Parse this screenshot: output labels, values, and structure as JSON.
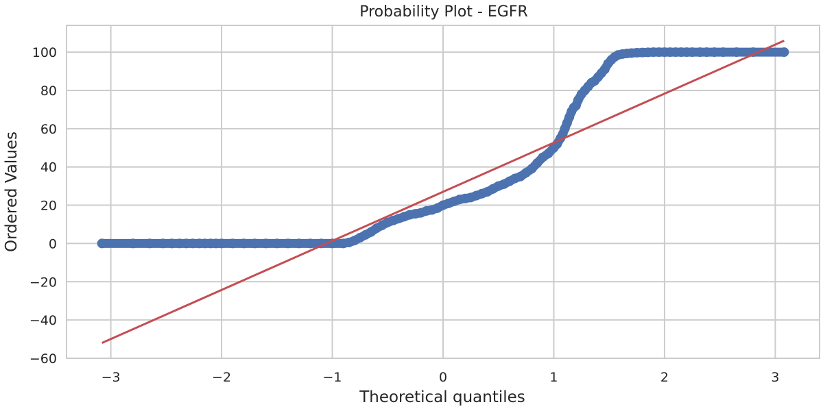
{
  "chart_data": {
    "type": "scatter",
    "title": "Probability Plot - EGFR",
    "xlabel": "Theoretical quantiles",
    "ylabel": "Ordered Values",
    "xlim": [
      -3.4,
      3.4
    ],
    "ylim": [
      -60,
      114
    ],
    "xticks": [
      -3,
      -2,
      -1,
      0,
      1,
      2,
      3
    ],
    "xtick_labels": [
      "−3",
      "−2",
      "−1",
      "0",
      "1",
      "2",
      "3"
    ],
    "yticks": [
      -60,
      -40,
      -20,
      0,
      20,
      40,
      60,
      80,
      100
    ],
    "ytick_labels": [
      "−60",
      "−40",
      "−20",
      "0",
      "20",
      "40",
      "60",
      "80",
      "100"
    ],
    "grid": true,
    "legend": "none",
    "marker_color": "#4c72b0",
    "line_color": "#c44e52",
    "series": [
      {
        "kind": "points",
        "points": [
          [
            -3.08,
            0
          ],
          [
            -2.8,
            0
          ],
          [
            -2.65,
            0
          ],
          [
            -2.53,
            0
          ],
          [
            -2.45,
            0
          ],
          [
            -2.38,
            0
          ],
          [
            -2.32,
            0
          ],
          [
            -2.26,
            0
          ],
          [
            -2.2,
            0
          ],
          [
            -2.15,
            0
          ],
          [
            -2.1,
            0
          ],
          [
            -2.05,
            0
          ],
          [
            -2.0,
            0
          ],
          [
            -1.9,
            0
          ],
          [
            -1.8,
            0
          ],
          [
            -1.7,
            0
          ],
          [
            -1.6,
            0
          ],
          [
            -1.5,
            0
          ],
          [
            -1.4,
            0
          ],
          [
            -1.3,
            0
          ],
          [
            -1.2,
            0
          ],
          [
            -1.1,
            0
          ],
          [
            -1.0,
            0
          ],
          [
            -0.9,
            0
          ],
          [
            -0.85,
            0.5
          ],
          [
            -0.8,
            1.5
          ],
          [
            -0.75,
            3
          ],
          [
            -0.7,
            4.5
          ],
          [
            -0.65,
            6
          ],
          [
            -0.6,
            8
          ],
          [
            -0.55,
            9.5
          ],
          [
            -0.5,
            11
          ],
          [
            -0.45,
            12
          ],
          [
            -0.4,
            13
          ],
          [
            -0.35,
            14
          ],
          [
            -0.3,
            15
          ],
          [
            -0.25,
            15.5
          ],
          [
            -0.2,
            16
          ],
          [
            -0.15,
            17
          ],
          [
            -0.1,
            17.5
          ],
          [
            -0.05,
            18.5
          ],
          [
            0.0,
            20
          ],
          [
            0.05,
            21
          ],
          [
            0.1,
            22
          ],
          [
            0.15,
            23
          ],
          [
            0.2,
            23.5
          ],
          [
            0.25,
            24
          ],
          [
            0.3,
            25
          ],
          [
            0.35,
            26
          ],
          [
            0.4,
            27
          ],
          [
            0.45,
            28.5
          ],
          [
            0.5,
            30
          ],
          [
            0.55,
            31
          ],
          [
            0.6,
            32.5
          ],
          [
            0.65,
            34
          ],
          [
            0.7,
            35
          ],
          [
            0.75,
            37
          ],
          [
            0.8,
            39
          ],
          [
            0.85,
            42
          ],
          [
            0.9,
            45
          ],
          [
            0.95,
            47
          ],
          [
            1.0,
            50
          ],
          [
            1.03,
            52
          ],
          [
            1.06,
            55
          ],
          [
            1.08,
            57
          ],
          [
            1.1,
            60
          ],
          [
            1.12,
            63
          ],
          [
            1.14,
            66
          ],
          [
            1.16,
            69
          ],
          [
            1.18,
            71
          ],
          [
            1.2,
            72
          ],
          [
            1.22,
            75
          ],
          [
            1.25,
            78
          ],
          [
            1.28,
            80
          ],
          [
            1.31,
            82
          ],
          [
            1.34,
            84
          ],
          [
            1.37,
            85
          ],
          [
            1.4,
            87
          ],
          [
            1.43,
            89
          ],
          [
            1.46,
            91
          ],
          [
            1.49,
            94
          ],
          [
            1.52,
            96
          ],
          [
            1.55,
            97.5
          ],
          [
            1.58,
            98.5
          ],
          [
            1.62,
            99
          ],
          [
            1.66,
            99.3
          ],
          [
            1.7,
            99.5
          ],
          [
            1.75,
            99.7
          ],
          [
            1.8,
            99.8
          ],
          [
            1.85,
            99.9
          ],
          [
            1.9,
            100
          ],
          [
            1.95,
            100
          ],
          [
            2.0,
            100
          ],
          [
            2.05,
            100
          ],
          [
            2.1,
            100
          ],
          [
            2.15,
            100
          ],
          [
            2.2,
            100
          ],
          [
            2.25,
            100
          ],
          [
            2.32,
            100
          ],
          [
            2.38,
            100
          ],
          [
            2.45,
            100
          ],
          [
            2.53,
            100
          ],
          [
            2.65,
            100
          ],
          [
            2.8,
            100
          ],
          [
            3.08,
            100
          ]
        ]
      },
      {
        "kind": "fit-line",
        "points": [
          [
            -3.08,
            -52
          ],
          [
            3.08,
            106
          ]
        ]
      }
    ]
  }
}
